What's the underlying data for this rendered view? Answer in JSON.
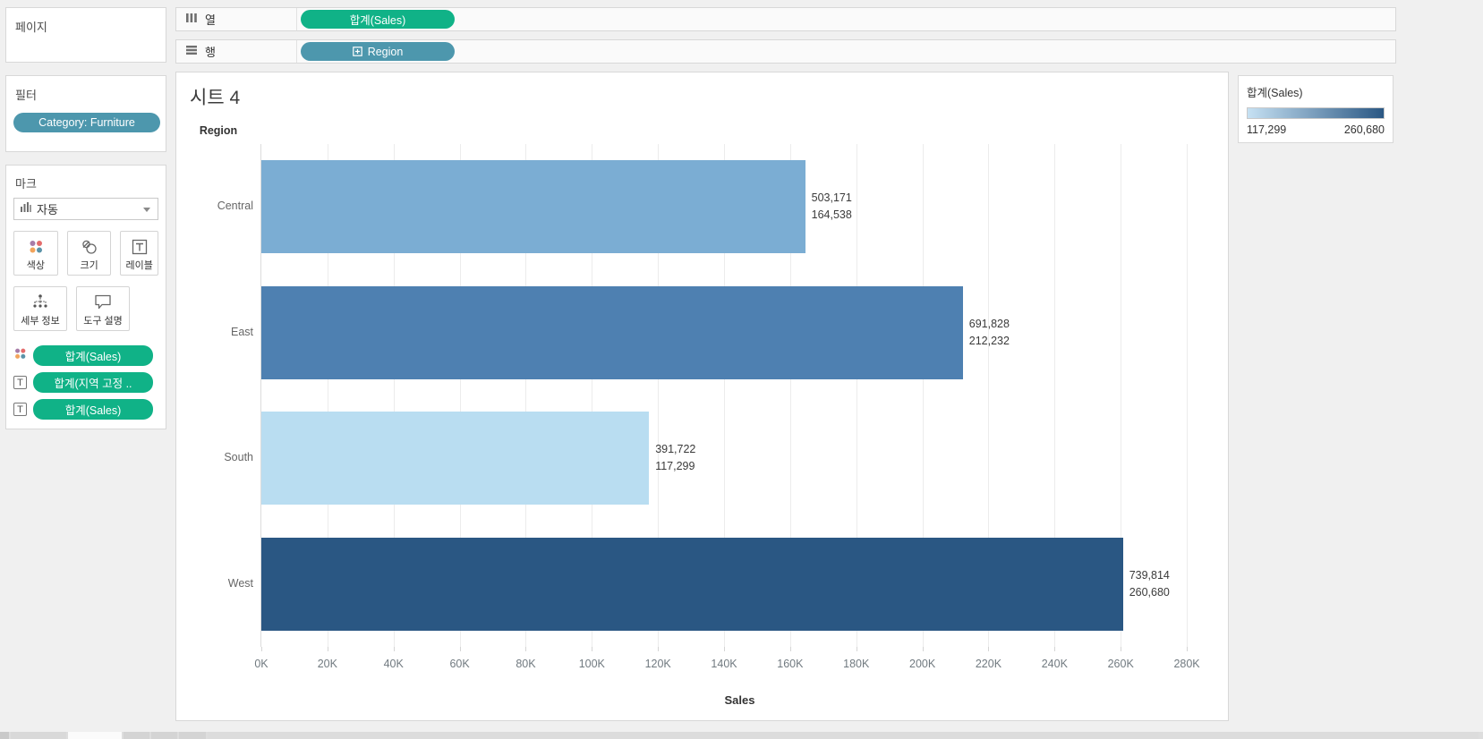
{
  "colors": {
    "green": "#10b287",
    "teal": "#4d97ad",
    "legend_gradient_start": "#c6e1f3",
    "legend_gradient_end": "#2a5783"
  },
  "pages_shelf": {
    "title": "페이지"
  },
  "filters_shelf": {
    "title": "필터",
    "pill": "Category: Furniture"
  },
  "marks_card": {
    "title": "마크",
    "mark_type_label": "자동",
    "buttons": [
      {
        "label": "색상"
      },
      {
        "label": "크기"
      },
      {
        "label": "레이블"
      },
      {
        "label": "세부 정보"
      },
      {
        "label": "도구 설명"
      }
    ],
    "pills": [
      {
        "icon": "color-dots",
        "label": "합계(Sales)"
      },
      {
        "icon": "text",
        "label": "합계(지역 고정 .."
      },
      {
        "icon": "text",
        "label": "합계(Sales)"
      }
    ],
    "text_icon_glyph": "T"
  },
  "columns_shelf": {
    "label": "열",
    "pill": "합계(Sales)"
  },
  "rows_shelf": {
    "label": "행",
    "pill": "Region"
  },
  "sheet": {
    "title": "시트 4"
  },
  "chart_data": {
    "type": "bar",
    "orientation": "horizontal",
    "row_header": "Region",
    "categories": [
      "Central",
      "East",
      "South",
      "West"
    ],
    "series": [
      {
        "name": "합계(지역 고정 ..)",
        "values": [
          503171,
          691828,
          391722,
          739814
        ]
      },
      {
        "name": "합계(Sales)",
        "values": [
          164538,
          212232,
          117299,
          260680
        ]
      }
    ],
    "bar_length_series": "합계(Sales)",
    "bar_labels": [
      [
        "503,171",
        "164,538"
      ],
      [
        "691,828",
        "212,232"
      ],
      [
        "391,722",
        "117,299"
      ],
      [
        "739,814",
        "260,680"
      ]
    ],
    "bar_colors": [
      "#7badd3",
      "#4e80b1",
      "#b9ddf1",
      "#2a5783"
    ],
    "xlabel": "Sales",
    "x_ticks": [
      "0K",
      "20K",
      "40K",
      "60K",
      "80K",
      "100K",
      "120K",
      "140K",
      "160K",
      "180K",
      "200K",
      "220K",
      "240K",
      "260K",
      "280K"
    ],
    "x_tick_values": [
      0,
      20000,
      40000,
      60000,
      80000,
      100000,
      120000,
      140000,
      160000,
      180000,
      200000,
      220000,
      240000,
      260000,
      280000
    ],
    "xlim": [
      0,
      290000
    ],
    "grid": true,
    "legend_position": "right"
  },
  "legend": {
    "title": "합계(Sales)",
    "min_label": "117,299",
    "max_label": "260,680"
  }
}
